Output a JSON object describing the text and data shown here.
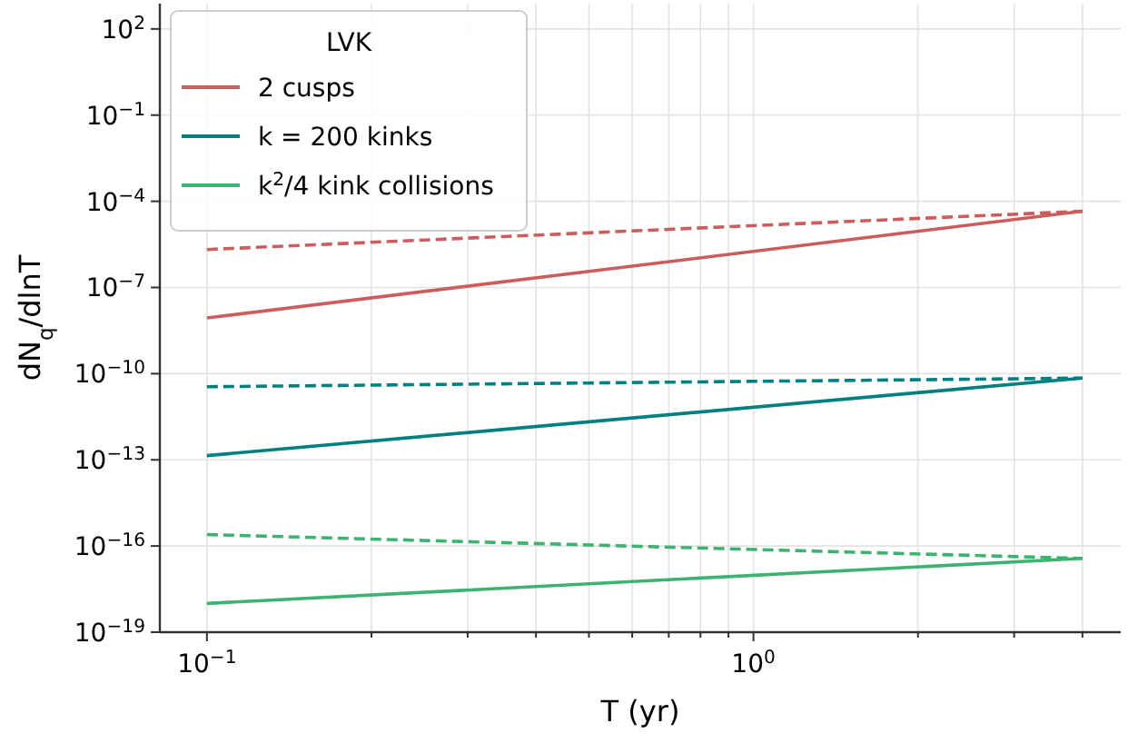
{
  "chart_data": {
    "type": "line",
    "xlabel": "T (yr)",
    "ylabel": "dN$_{q}$/dlnT",
    "legend_title": "LVK",
    "legend": "top left",
    "grid": true,
    "log": "xy",
    "xlim": [
      0.082,
      4.7
    ],
    "ylim": [
      1e-19,
      760
    ],
    "xticks": [
      {
        "value": 0.1,
        "label": "10$^{−1}$"
      },
      {
        "value": 0.2,
        "label": null
      },
      {
        "value": 0.3,
        "label": null
      },
      {
        "value": 0.4,
        "label": null
      },
      {
        "value": 0.5,
        "label": null
      },
      {
        "value": 0.6,
        "label": null
      },
      {
        "value": 0.7,
        "label": null
      },
      {
        "value": 0.8,
        "label": null
      },
      {
        "value": 0.9,
        "label": null
      },
      {
        "value": 1,
        "label": "10$^{0}$"
      },
      {
        "value": 2,
        "label": null
      },
      {
        "value": 3,
        "label": null
      },
      {
        "value": 4,
        "label": null
      }
    ],
    "yticks": [
      {
        "value": 1e-19,
        "label": "10$^{−19}$"
      },
      {
        "value": 1e-16,
        "label": "10$^{−16}$"
      },
      {
        "value": 1e-13,
        "label": "10$^{−13}$"
      },
      {
        "value": 1e-10,
        "label": "10$^{−10}$"
      },
      {
        "value": 1e-07,
        "label": "10$^{−7}$"
      },
      {
        "value": 0.0001,
        "label": "10$^{−4}$"
      },
      {
        "value": 0.1,
        "label": "10$^{−1}$"
      },
      {
        "value": 100,
        "label": "10$^{2}$"
      }
    ],
    "x": [
      0.1,
      4
    ],
    "series": [
      {
        "name": "2 cusps",
        "color": "#cd5c5c",
        "line_style": "solid",
        "values": [
          8.7e-09,
          4.5e-05
        ]
      },
      {
        "name": "k = 200 kinks",
        "color": "#008080",
        "line_style": "solid",
        "values": [
          1.4e-13,
          7e-11
        ]
      },
      {
        "name": "k$^{2}$/4 kink collisions",
        "color": "#3cb371",
        "line_style": "solid",
        "values": [
          1e-18,
          3.7e-17
        ]
      },
      {
        "color": "#cd5c5c",
        "line_style": "dashed",
        "values": [
          2.1e-06,
          4.5e-05
        ]
      },
      {
        "color": "#008080",
        "line_style": "dashed",
        "values": [
          3.5e-11,
          7e-11
        ]
      },
      {
        "color": "#3cb371",
        "line_style": "dashed",
        "values": [
          2.5e-16,
          3.7e-17
        ]
      }
    ]
  }
}
